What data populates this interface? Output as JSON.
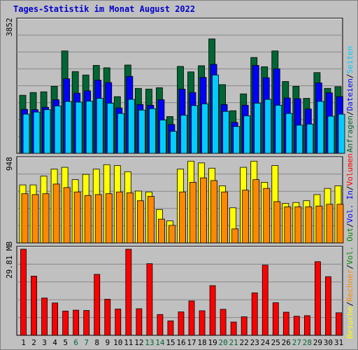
{
  "title": "Tages-Statistik im Monat August 2022",
  "colors": {
    "anfragen": "#006633",
    "dateien": "#0000ff",
    "seiten": "#00ccff",
    "besuche": "#ffff00",
    "rechner": "#ff8800",
    "volumen": "#ff0000",
    "grid": "#888888",
    "panel_bg": "#c0c0c0",
    "weekday_label": "#000000",
    "weekend_label": "#006633"
  },
  "chart_data": [
    {
      "type": "bar",
      "name": "hits",
      "ymax_label": "3852",
      "ylim": [
        0,
        3852
      ],
      "categories": [
        "1",
        "2",
        "3",
        "4",
        "5",
        "6",
        "7",
        "8",
        "9",
        "10",
        "11",
        "12",
        "13",
        "14",
        "15",
        "16",
        "17",
        "18",
        "19",
        "20",
        "21",
        "22",
        "23",
        "24",
        "25",
        "26",
        "27",
        "28",
        "29",
        "30",
        "31"
      ],
      "weekend": [
        "6",
        "7",
        "13",
        "14",
        "20",
        "21",
        "27",
        "28"
      ],
      "series": [
        {
          "name": "Anfragen",
          "values": [
            1690,
            1770,
            1790,
            1950,
            2980,
            2380,
            2280,
            2560,
            2490,
            1650,
            2570,
            1890,
            1870,
            1910,
            1070,
            2530,
            2370,
            2550,
            3330,
            2000,
            1240,
            1730,
            2790,
            2520,
            2980,
            2090,
            1950,
            1600,
            2350,
            1890,
            1940
          ]
        },
        {
          "name": "Dateien",
          "values": [
            1280,
            1270,
            1340,
            1560,
            2170,
            1750,
            1820,
            2130,
            2060,
            1320,
            2240,
            1420,
            1400,
            1560,
            840,
            1870,
            1770,
            2210,
            2590,
            1420,
            900,
            1400,
            2560,
            2200,
            2460,
            1610,
            1590,
            1290,
            2050,
            1760,
            1650
          ]
        },
        {
          "name": "Seiten",
          "values": [
            1140,
            1200,
            1270,
            1380,
            1510,
            1490,
            1520,
            1600,
            1460,
            1160,
            1570,
            1260,
            1300,
            970,
            640,
            1110,
            1390,
            1440,
            2280,
            1220,
            780,
            1090,
            1460,
            1570,
            1400,
            1160,
            820,
            850,
            1510,
            1080,
            1140
          ]
        }
      ],
      "legend": [
        "Anfragen",
        "Dateien",
        "Seiten"
      ]
    },
    {
      "type": "bar",
      "name": "visits",
      "ymax_label": "948",
      "ylim": [
        0,
        948
      ],
      "categories": [
        "1",
        "2",
        "3",
        "4",
        "5",
        "6",
        "7",
        "8",
        "9",
        "10",
        "11",
        "12",
        "13",
        "14",
        "15",
        "16",
        "17",
        "18",
        "19",
        "20",
        "21",
        "22",
        "23",
        "24",
        "25",
        "26",
        "27",
        "28",
        "29",
        "30",
        "31"
      ],
      "series": [
        {
          "name": "Besuche",
          "values": [
            660,
            660,
            760,
            840,
            860,
            720,
            780,
            840,
            890,
            880,
            810,
            590,
            580,
            380,
            250,
            840,
            930,
            910,
            850,
            650,
            400,
            860,
            930,
            690,
            880,
            450,
            460,
            480,
            550,
            620,
            650
          ]
        },
        {
          "name": "Rechner",
          "values": [
            560,
            550,
            560,
            670,
            630,
            580,
            540,
            550,
            560,
            580,
            570,
            480,
            530,
            270,
            200,
            580,
            690,
            740,
            710,
            580,
            160,
            600,
            720,
            620,
            470,
            410,
            410,
            410,
            420,
            440,
            440
          ]
        }
      ],
      "legend": [
        "Besuche",
        "Rechner"
      ]
    },
    {
      "type": "bar",
      "name": "volume",
      "ymax_label": "29.81 MB",
      "ylim": [
        0,
        29.81
      ],
      "categories": [
        "1",
        "2",
        "3",
        "4",
        "5",
        "6",
        "7",
        "8",
        "9",
        "10",
        "11",
        "12",
        "13",
        "14",
        "15",
        "16",
        "17",
        "18",
        "19",
        "20",
        "21",
        "22",
        "23",
        "24",
        "25",
        "26",
        "27",
        "28",
        "29",
        "30",
        "31"
      ],
      "series": [
        {
          "name": "Volumen",
          "values": [
            29.81,
            20.5,
            12.9,
            11.2,
            8.4,
            8.7,
            8.6,
            21.1,
            12.5,
            9.1,
            29.8,
            9.2,
            24.8,
            7.2,
            5.0,
            8.1,
            11.9,
            8.5,
            17.2,
            9.0,
            4.6,
            6.4,
            14.7,
            24.3,
            11.3,
            8.0,
            6.6,
            6.8,
            25.5,
            20.3,
            7.8
          ]
        }
      ],
      "legend": [
        "Volumen"
      ]
    }
  ],
  "axis_legend": {
    "hits": [
      {
        "text": "Anfragen",
        "color": "#006633"
      },
      {
        "text": "/",
        "color": "#000000"
      },
      {
        "text": "Dateien",
        "color": "#0000ff"
      },
      {
        "text": "/",
        "color": "#000000"
      },
      {
        "text": "Seiten",
        "color": "#00ccff"
      }
    ],
    "visits": [
      {
        "text": "Besuche",
        "color": "#ffff00"
      },
      {
        "text": "/",
        "color": "#000000"
      },
      {
        "text": "Rechner",
        "color": "#ff8800"
      },
      {
        "text": "/",
        "color": "#000000"
      },
      {
        "text": "Vol. Out",
        "color": "#008800"
      },
      {
        "text": "/",
        "color": "#000000"
      },
      {
        "text": "Vol. In",
        "color": "#0000ff"
      },
      {
        "text": "/",
        "color": "#000000"
      },
      {
        "text": "Volumen",
        "color": "#ff0000"
      }
    ]
  }
}
